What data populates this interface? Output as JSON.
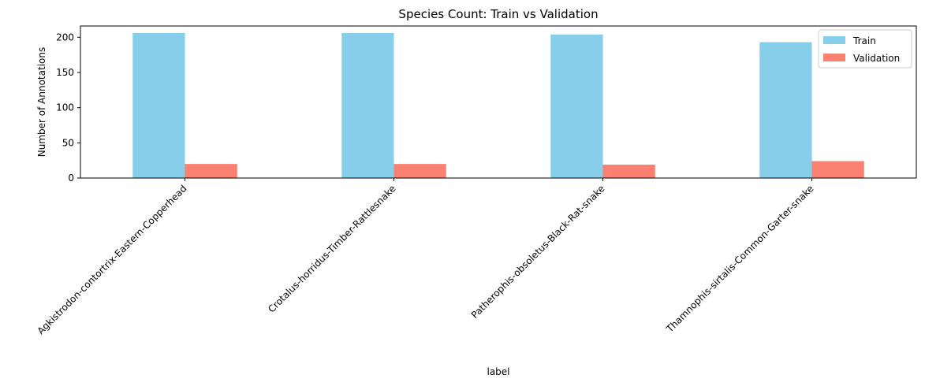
{
  "chart_data": {
    "type": "bar",
    "title": "Species Count: Train vs Validation",
    "xlabel": "label",
    "ylabel": "Number of Annotations",
    "categories": [
      "Agkistrodon-contortrix-Eastern-Copperhead",
      "Crotalus-horridus-Timber-Rattlesnake",
      "Patherophis-obsoletus-Black-Rat-snake",
      "Thamnophis-sirtalis-Common-Garter-snake"
    ],
    "series": [
      {
        "name": "Train",
        "values": [
          206,
          206,
          204,
          193
        ],
        "color": "#87ceeb"
      },
      {
        "name": "Validation",
        "values": [
          20,
          20,
          19,
          24
        ],
        "color": "#fa8072"
      }
    ],
    "ylim": [
      0,
      216
    ],
    "yticks": [
      0,
      50,
      100,
      150,
      200
    ],
    "legend": "top-right",
    "grid": false
  }
}
